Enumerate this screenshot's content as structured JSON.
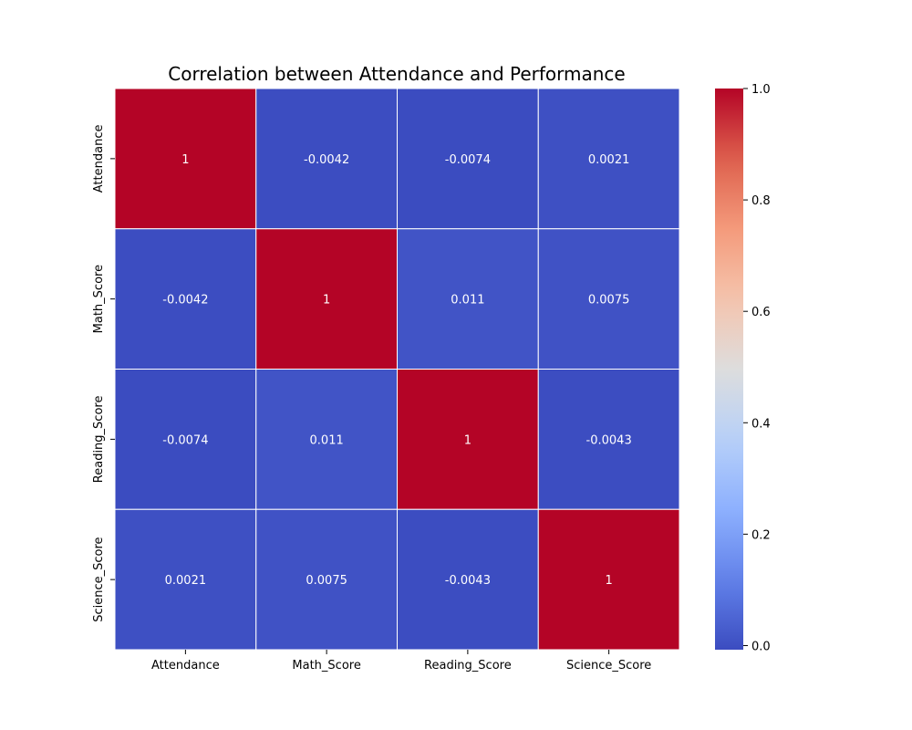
{
  "chart_data": {
    "type": "heatmap",
    "title": "Correlation between Attendance and Performance",
    "x_labels": [
      "Attendance",
      "Math_Score",
      "Reading_Score",
      "Science_Score"
    ],
    "y_labels": [
      "Attendance",
      "Math_Score",
      "Reading_Score",
      "Science_Score"
    ],
    "values": [
      [
        1,
        -0.0042,
        -0.0074,
        0.0021
      ],
      [
        -0.0042,
        1,
        0.011,
        0.0075
      ],
      [
        -0.0074,
        0.011,
        1,
        -0.0043
      ],
      [
        0.0021,
        0.0075,
        -0.0043,
        1
      ]
    ],
    "annotations": [
      [
        "1",
        "-0.0042",
        "-0.0074",
        "0.0021"
      ],
      [
        "-0.0042",
        "1",
        "0.011",
        "0.0075"
      ],
      [
        "-0.0074",
        "0.011",
        "1",
        "-0.0043"
      ],
      [
        "0.0021",
        "0.0075",
        "-0.0043",
        "1"
      ]
    ],
    "colormap": "coolwarm",
    "colorbar": {
      "range": [
        -0.0074,
        1
      ],
      "ticks": [
        0.0,
        0.2,
        0.4,
        0.6,
        0.8,
        1.0
      ],
      "tick_labels": [
        "0.0",
        "0.2",
        "0.4",
        "0.6",
        "0.8",
        "1.0"
      ]
    },
    "cell_border_color": "#ffffff"
  }
}
